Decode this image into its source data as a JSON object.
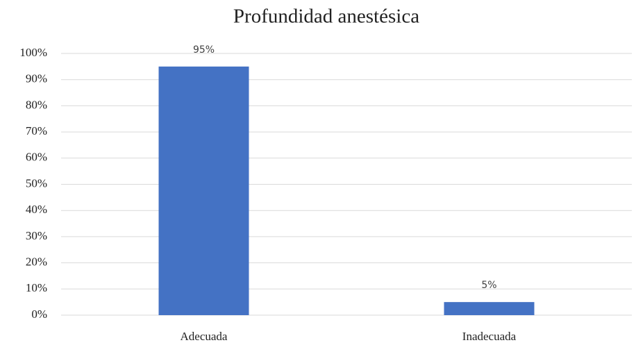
{
  "chart_data": {
    "type": "bar",
    "title": "Profundidad anestésica",
    "categories": [
      "Adecuada",
      "Inadecuada"
    ],
    "values": [
      95,
      5
    ],
    "value_labels": [
      "95%",
      "5%"
    ],
    "color": "#4472c4",
    "ylim": [
      0,
      100
    ],
    "yticks": [
      {
        "value": 0,
        "label": "0%"
      },
      {
        "value": 10,
        "label": "10%"
      },
      {
        "value": 20,
        "label": "20%"
      },
      {
        "value": 30,
        "label": "30%"
      },
      {
        "value": 40,
        "label": "40%"
      },
      {
        "value": 50,
        "label": "50%"
      },
      {
        "value": 60,
        "label": "60%"
      },
      {
        "value": 70,
        "label": "70%"
      },
      {
        "value": 80,
        "label": "80%"
      },
      {
        "value": 90,
        "label": "90%"
      },
      {
        "value": 100,
        "label": "100%"
      }
    ],
    "grid": true
  }
}
